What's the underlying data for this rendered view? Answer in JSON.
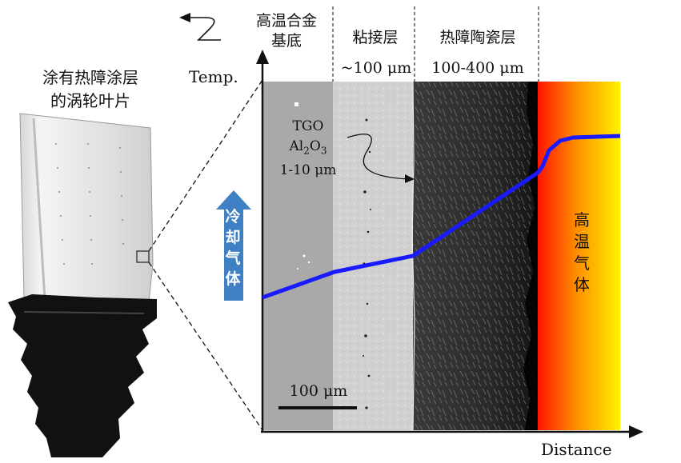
{
  "blade": {
    "caption_line1": "涂有热障涂层",
    "caption_line2": "的涡轮叶片"
  },
  "layers": {
    "substrate_line1": "高温合金",
    "substrate_line2": "基底",
    "bond_coat": "粘接层",
    "bond_coat_thickness": "~100 μm",
    "ceramic": "热障陶瓷层",
    "ceramic_thickness": "100-400 μm"
  },
  "axes": {
    "y_label": "Temp.",
    "x_label": "Distance"
  },
  "tgo": {
    "line1": "TGO",
    "line2_base": "Al",
    "line2_sub1": "2",
    "line2_mid": "O",
    "line2_sub2": "3",
    "line3": "1-10 μm"
  },
  "scale_bar": "100 μm",
  "hot_gas": [
    "高",
    "温",
    "气",
    "体"
  ],
  "cooling_gas": [
    "冷",
    "却",
    "气",
    "体"
  ],
  "colors": {
    "temperature_line": "#1a1aff",
    "cooling_arrow": "#3f7fc4",
    "hot_gas_start": "#ff1a00",
    "hot_gas_end": "#fff200"
  }
}
